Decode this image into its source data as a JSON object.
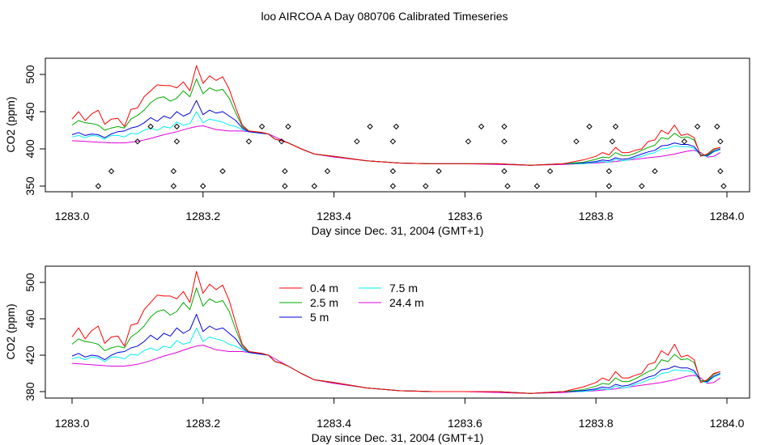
{
  "figure_title": "loo AIRCOA A  Day 080706  Calibrated Timeseries",
  "chart_data": [
    {
      "type": "line",
      "xlabel": "Day since Dec. 31, 2004 (GMT+1)",
      "ylabel": "CO2 (ppm)",
      "xlim": [
        1282.99,
        1284.02
      ],
      "ylim": [
        343,
        520
      ],
      "xticks": [
        1283.0,
        1283.2,
        1283.4,
        1283.6,
        1283.8,
        1284.0
      ],
      "xtick_labels": [
        "1283.0",
        "1283.2",
        "1283.4",
        "1283.6",
        "1283.8",
        "1284.0"
      ],
      "yticks": [
        350,
        400,
        450,
        500
      ],
      "ytick_labels": [
        "350",
        "400",
        "450",
        "500"
      ],
      "legend": false,
      "series": [
        {
          "color": "#ff0000",
          "x": [
            1283.0,
            1283.01,
            1283.02,
            1283.03,
            1283.04,
            1283.05,
            1283.06,
            1283.07,
            1283.08,
            1283.09,
            1283.1,
            1283.11,
            1283.12,
            1283.13,
            1283.14,
            1283.15,
            1283.16,
            1283.17,
            1283.18,
            1283.19,
            1283.2,
            1283.21,
            1283.22,
            1283.23,
            1283.24,
            1283.25,
            1283.26,
            1283.27,
            1283.28,
            1283.29,
            1283.3,
            1283.31,
            1283.32,
            1283.33,
            1283.35,
            1283.37,
            1283.4,
            1283.45,
            1283.5,
            1283.55,
            1283.6,
            1283.65,
            1283.7,
            1283.75,
            1283.78,
            1283.8,
            1283.81,
            1283.82,
            1283.83,
            1283.84,
            1283.85,
            1283.86,
            1283.87,
            1283.88,
            1283.89,
            1283.9,
            1283.91,
            1283.92,
            1283.93,
            1283.94,
            1283.95,
            1283.96,
            1283.97,
            1283.98,
            1283.99
          ],
          "y": [
            440,
            450,
            438,
            447,
            452,
            433,
            440,
            441,
            430,
            453,
            455,
            470,
            478,
            486,
            485,
            485,
            482,
            490,
            478,
            512,
            488,
            498,
            492,
            497,
            480,
            455,
            432,
            424,
            423,
            422,
            420,
            413,
            411,
            408,
            400,
            393,
            390,
            384,
            381,
            380,
            380,
            380,
            378,
            380,
            385,
            390,
            395,
            392,
            402,
            395,
            395,
            398,
            400,
            410,
            412,
            425,
            420,
            432,
            418,
            420,
            415,
            390,
            393,
            400,
            402
          ]
        },
        {
          "color": "#00aa00",
          "x": [
            1283.0,
            1283.01,
            1283.02,
            1283.03,
            1283.04,
            1283.05,
            1283.06,
            1283.07,
            1283.08,
            1283.09,
            1283.1,
            1283.11,
            1283.12,
            1283.13,
            1283.14,
            1283.15,
            1283.16,
            1283.17,
            1283.18,
            1283.19,
            1283.2,
            1283.21,
            1283.22,
            1283.23,
            1283.24,
            1283.25,
            1283.26,
            1283.27,
            1283.28,
            1283.29,
            1283.3,
            1283.31,
            1283.32,
            1283.33,
            1283.35,
            1283.37,
            1283.4,
            1283.45,
            1283.5,
            1283.55,
            1283.6,
            1283.65,
            1283.7,
            1283.75,
            1283.78,
            1283.8,
            1283.81,
            1283.82,
            1283.83,
            1283.84,
            1283.85,
            1283.86,
            1283.87,
            1283.88,
            1283.89,
            1283.9,
            1283.91,
            1283.92,
            1283.93,
            1283.94,
            1283.95,
            1283.96,
            1283.97,
            1283.98,
            1283.99
          ],
          "y": [
            432,
            438,
            435,
            434,
            432,
            425,
            428,
            430,
            428,
            440,
            445,
            452,
            462,
            468,
            470,
            464,
            468,
            478,
            470,
            494,
            474,
            482,
            478,
            480,
            468,
            448,
            430,
            424,
            423,
            422,
            420,
            413,
            411,
            408,
            400,
            393,
            390,
            384,
            381,
            380,
            380,
            380,
            378,
            380,
            382,
            386,
            389,
            388,
            395,
            391,
            391,
            394,
            398,
            402,
            405,
            415,
            413,
            421,
            415,
            416,
            412,
            392,
            392,
            399,
            402
          ]
        },
        {
          "color": "#0000dd",
          "x": [
            1283.0,
            1283.01,
            1283.02,
            1283.03,
            1283.04,
            1283.05,
            1283.06,
            1283.07,
            1283.08,
            1283.09,
            1283.1,
            1283.11,
            1283.12,
            1283.13,
            1283.14,
            1283.15,
            1283.16,
            1283.17,
            1283.18,
            1283.19,
            1283.2,
            1283.21,
            1283.22,
            1283.23,
            1283.24,
            1283.25,
            1283.26,
            1283.27,
            1283.28,
            1283.29,
            1283.3,
            1283.31,
            1283.32,
            1283.33,
            1283.35,
            1283.37,
            1283.4,
            1283.45,
            1283.5,
            1283.55,
            1283.6,
            1283.65,
            1283.7,
            1283.75,
            1283.78,
            1283.8,
            1283.81,
            1283.82,
            1283.83,
            1283.84,
            1283.85,
            1283.86,
            1283.87,
            1283.88,
            1283.89,
            1283.9,
            1283.91,
            1283.92,
            1283.93,
            1283.94,
            1283.95,
            1283.96,
            1283.97,
            1283.98,
            1283.99
          ],
          "y": [
            419,
            422,
            418,
            420,
            419,
            415,
            420,
            423,
            424,
            428,
            430,
            435,
            442,
            437,
            444,
            441,
            450,
            444,
            448,
            465,
            446,
            452,
            448,
            450,
            444,
            438,
            428,
            423,
            422,
            421,
            420,
            413,
            411,
            408,
            400,
            393,
            390,
            384,
            381,
            380,
            380,
            380,
            378,
            380,
            381,
            383,
            385,
            384,
            388,
            386,
            387,
            390,
            393,
            396,
            398,
            404,
            405,
            408,
            406,
            406,
            403,
            392,
            391,
            397,
            400
          ]
        },
        {
          "color": "#00eeee",
          "x": [
            1283.0,
            1283.01,
            1283.02,
            1283.03,
            1283.04,
            1283.05,
            1283.06,
            1283.07,
            1283.08,
            1283.09,
            1283.1,
            1283.11,
            1283.12,
            1283.13,
            1283.14,
            1283.15,
            1283.16,
            1283.17,
            1283.18,
            1283.19,
            1283.2,
            1283.21,
            1283.22,
            1283.23,
            1283.24,
            1283.25,
            1283.26,
            1283.27,
            1283.28,
            1283.29,
            1283.3,
            1283.31,
            1283.32,
            1283.33,
            1283.35,
            1283.37,
            1283.4,
            1283.45,
            1283.5,
            1283.55,
            1283.6,
            1283.65,
            1283.7,
            1283.75,
            1283.78,
            1283.8,
            1283.81,
            1283.82,
            1283.83,
            1283.84,
            1283.85,
            1283.86,
            1283.87,
            1283.88,
            1283.89,
            1283.9,
            1283.91,
            1283.92,
            1283.93,
            1283.94,
            1283.95,
            1283.96,
            1283.97,
            1283.98,
            1283.99
          ],
          "y": [
            416,
            418,
            415,
            418,
            417,
            413,
            418,
            418,
            416,
            421,
            420,
            425,
            428,
            425,
            430,
            428,
            436,
            432,
            434,
            450,
            435,
            440,
            438,
            436,
            432,
            430,
            426,
            423,
            422,
            421,
            420,
            413,
            411,
            408,
            400,
            393,
            390,
            384,
            381,
            380,
            380,
            380,
            378,
            380,
            380,
            382,
            383,
            382,
            386,
            384,
            385,
            388,
            390,
            393,
            395,
            400,
            401,
            404,
            403,
            403,
            401,
            391,
            390,
            396,
            399
          ]
        },
        {
          "color": "#dd00dd",
          "x": [
            1283.0,
            1283.02,
            1283.04,
            1283.06,
            1283.08,
            1283.1,
            1283.12,
            1283.14,
            1283.16,
            1283.18,
            1283.19,
            1283.2,
            1283.22,
            1283.24,
            1283.26,
            1283.28,
            1283.3,
            1283.33,
            1283.35,
            1283.37,
            1283.4,
            1283.45,
            1283.5,
            1283.55,
            1283.6,
            1283.65,
            1283.7,
            1283.75,
            1283.8,
            1283.83,
            1283.86,
            1283.88,
            1283.9,
            1283.92,
            1283.94,
            1283.95,
            1283.96,
            1283.97,
            1283.98,
            1283.99
          ],
          "y": [
            411,
            410,
            409,
            408,
            408,
            410,
            414,
            419,
            423,
            428,
            430,
            431,
            426,
            424,
            424,
            422,
            420,
            408,
            400,
            393,
            389,
            384,
            381,
            380,
            380,
            379,
            378,
            379,
            381,
            383,
            386,
            388,
            390,
            393,
            397,
            398,
            395,
            389,
            390,
            395
          ]
        }
      ],
      "markers": {
        "shape": "diamond",
        "x": [
          1283.04,
          1283.06,
          1283.1,
          1283.12,
          1283.155,
          1283.155,
          1283.16,
          1283.16,
          1283.2,
          1283.23,
          1283.27,
          1283.29,
          1283.32,
          1283.325,
          1283.325,
          1283.33,
          1283.37,
          1283.39,
          1283.435,
          1283.455,
          1283.49,
          1283.49,
          1283.49,
          1283.495,
          1283.54,
          1283.56,
          1283.605,
          1283.625,
          1283.66,
          1283.66,
          1283.66,
          1283.665,
          1283.71,
          1283.73,
          1283.77,
          1283.79,
          1283.82,
          1283.82,
          1283.825,
          1283.83,
          1283.87,
          1283.89,
          1283.935,
          1283.955,
          1283.985,
          1283.99,
          1283.99,
          1283.995
        ],
        "y": [
          350,
          370,
          410,
          430,
          350,
          370,
          410,
          430,
          350,
          370,
          410,
          430,
          410,
          350,
          370,
          430,
          350,
          370,
          410,
          430,
          350,
          370,
          410,
          430,
          350,
          370,
          410,
          430,
          370,
          410,
          430,
          350,
          350,
          370,
          410,
          430,
          350,
          370,
          410,
          430,
          350,
          370,
          410,
          430,
          430,
          410,
          370,
          350
        ]
      }
    },
    {
      "type": "line",
      "xlabel": "Day since Dec. 31, 2004 (GMT+1)",
      "ylabel": "CO2 (ppm)",
      "xlim": [
        1282.99,
        1284.02
      ],
      "ylim": [
        375,
        512
      ],
      "xticks": [
        1283.0,
        1283.2,
        1283.4,
        1283.6,
        1283.8,
        1284.0
      ],
      "xtick_labels": [
        "1283.0",
        "1283.2",
        "1283.4",
        "1283.6",
        "1283.8",
        "1284.0"
      ],
      "yticks": [
        380,
        420,
        460,
        500
      ],
      "ytick_labels": [
        "380",
        "420",
        "460",
        "500"
      ],
      "legend": true,
      "legend_position": "top-left",
      "legend_entries": [
        {
          "label": "0.4 m",
          "color": "#ff0000"
        },
        {
          "label": "2.5 m",
          "color": "#00aa00"
        },
        {
          "label": "5 m",
          "color": "#0000dd"
        },
        {
          "label": "7.5 m",
          "color": "#00eeee"
        },
        {
          "label": "24.4 m",
          "color": "#dd00dd"
        }
      ],
      "series_source": "same as upper panel"
    }
  ]
}
